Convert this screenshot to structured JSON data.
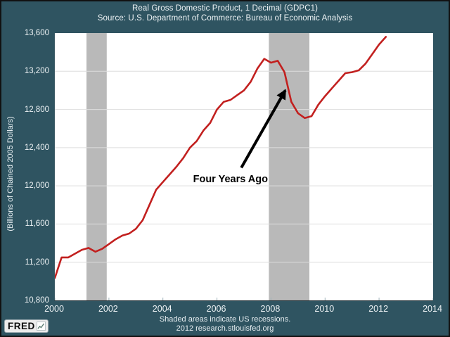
{
  "header": {
    "title": "Real Gross Domestic Product, 1 Decimal (GDPC1)",
    "subtitle": "Source: U.S. Department of Commerce: Bureau of Economic Analysis"
  },
  "y_axis": {
    "label": "(Billions of Chained 2005 Dollars)",
    "ticks": [
      {
        "label": "13,600",
        "value": 13600
      },
      {
        "label": "13,200",
        "value": 13200
      },
      {
        "label": "12,800",
        "value": 12800
      },
      {
        "label": "12,400",
        "value": 12400
      },
      {
        "label": "12,000",
        "value": 12000
      },
      {
        "label": "11,600",
        "value": 11600
      },
      {
        "label": "11,200",
        "value": 11200
      },
      {
        "label": "10,800",
        "value": 10800
      }
    ]
  },
  "x_axis": {
    "ticks": [
      {
        "label": "2000",
        "value": 2000
      },
      {
        "label": "2002",
        "value": 2002
      },
      {
        "label": "2004",
        "value": 2004
      },
      {
        "label": "2006",
        "value": 2006
      },
      {
        "label": "2008",
        "value": 2008
      },
      {
        "label": "2010",
        "value": 2010
      },
      {
        "label": "2012",
        "value": 2012
      },
      {
        "label": "2014",
        "value": 2014
      }
    ]
  },
  "footer": {
    "note": "Shaded areas indicate US recessions.",
    "credit": "2012 research.stlouisfed.org"
  },
  "logo": {
    "text": "FRED",
    "icon": "chart-line-icon"
  },
  "colors": {
    "background": "#2f5461",
    "plot_background": "#ffffff",
    "line": "#c2201f",
    "recession_band": "#b9b9b9",
    "gridline": "#dedede",
    "axis_text": "#eef3f5",
    "annotation": "#000000"
  },
  "chart_data": {
    "type": "line",
    "title": "Real Gross Domestic Product, 1 Decimal (GDPC1)",
    "subtitle": "Source: U.S. Department of Commerce: Bureau of Economic Analysis",
    "xlabel": "",
    "ylabel": "(Billions of Chained 2005 Dollars)",
    "xlim": [
      2000,
      2014
    ],
    "ylim": [
      10800,
      13600
    ],
    "grid": true,
    "legend": false,
    "series": [
      {
        "name": "GDPC1",
        "x": [
          2000.0,
          2000.25,
          2000.5,
          2000.75,
          2001.0,
          2001.25,
          2001.5,
          2001.75,
          2002.0,
          2002.25,
          2002.5,
          2002.75,
          2003.0,
          2003.25,
          2003.5,
          2003.75,
          2004.0,
          2004.25,
          2004.5,
          2004.75,
          2005.0,
          2005.25,
          2005.5,
          2005.75,
          2006.0,
          2006.25,
          2006.5,
          2006.75,
          2007.0,
          2007.25,
          2007.5,
          2007.75,
          2008.0,
          2008.25,
          2008.5,
          2008.75,
          2009.0,
          2009.25,
          2009.5,
          2009.75,
          2010.0,
          2010.25,
          2010.5,
          2010.75,
          2011.0,
          2011.25,
          2011.5,
          2011.75,
          2012.0,
          2012.25
        ],
        "values": [
          11035,
          11250,
          11250,
          11290,
          11330,
          11350,
          11310,
          11340,
          11390,
          11440,
          11480,
          11500,
          11550,
          11640,
          11800,
          11960,
          12040,
          12120,
          12200,
          12290,
          12400,
          12470,
          12580,
          12660,
          12800,
          12880,
          12900,
          12950,
          13000,
          13090,
          13230,
          13330,
          13290,
          13310,
          13190,
          12880,
          12760,
          12710,
          12730,
          12850,
          12940,
          13020,
          13100,
          13180,
          13190,
          13210,
          13280,
          13380,
          13480,
          13560
        ]
      }
    ],
    "recessions": [
      {
        "start": 2001.17,
        "end": 2001.92
      },
      {
        "start": 2007.92,
        "end": 2009.42
      }
    ],
    "annotation": {
      "text": "Four Years Ago",
      "text_center": [
        2006.5,
        12075
      ],
      "arrow_from": [
        2006.9,
        12190
      ],
      "arrow_to": [
        2008.53,
        13000
      ]
    }
  }
}
